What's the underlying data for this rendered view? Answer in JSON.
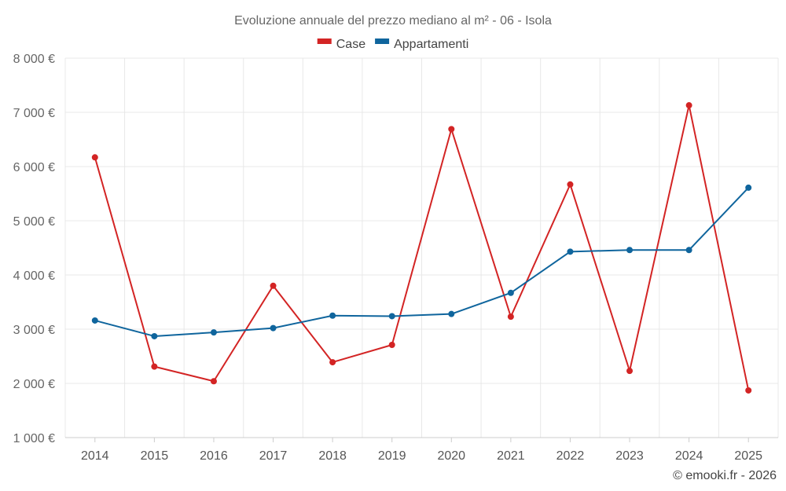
{
  "chart_data": {
    "type": "line",
    "title": "Evoluzione annuale del prezzo mediano al m² - 06 - Isola",
    "categories": [
      "2014",
      "2015",
      "2016",
      "2017",
      "2018",
      "2019",
      "2020",
      "2021",
      "2022",
      "2023",
      "2024",
      "2025"
    ],
    "series": [
      {
        "name": "Case",
        "color": "#d32424",
        "values": [
          6170,
          2310,
          2040,
          3800,
          2390,
          2710,
          6690,
          3230,
          5670,
          2230,
          7130,
          1870
        ]
      },
      {
        "name": "Appartamenti",
        "color": "#0f659d",
        "values": [
          3160,
          2870,
          2940,
          3020,
          3250,
          3240,
          3280,
          3670,
          4430,
          4460,
          4460,
          5610
        ]
      }
    ],
    "ylim": [
      1000,
      8000
    ],
    "yticks": [
      1000,
      2000,
      3000,
      4000,
      5000,
      6000,
      7000,
      8000
    ],
    "ytick_labels": [
      "1 000 €",
      "2 000 €",
      "3 000 €",
      "4 000 €",
      "5 000 €",
      "6 000 €",
      "7 000 €",
      "8 000 €"
    ],
    "xlabel": "",
    "ylabel": "",
    "grid": true,
    "legend_position": "top-center"
  },
  "credit": "© emooki.fr - 2026"
}
